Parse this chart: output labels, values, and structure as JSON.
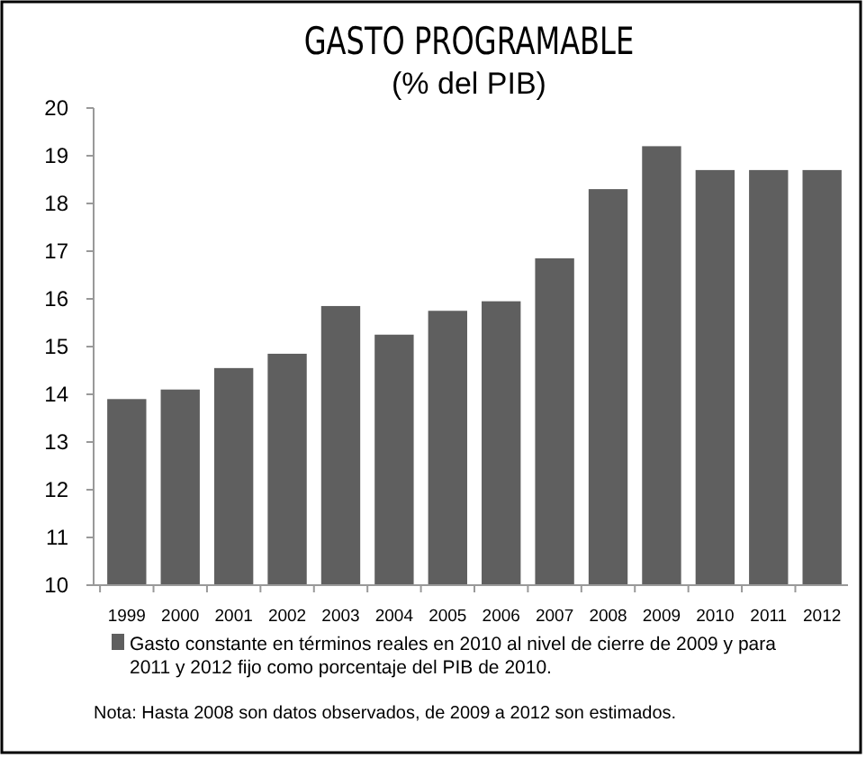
{
  "chart_data": {
    "type": "bar",
    "title": "GASTO PROGRAMABLE",
    "subtitle": "(% del PIB)",
    "categories": [
      "1999",
      "2000",
      "2001",
      "2002",
      "2003",
      "2004",
      "2005",
      "2006",
      "2007",
      "2008",
      "2009",
      "2010",
      "2011",
      "2012"
    ],
    "series": [
      {
        "name": "Gasto constante en términos reales en 2010 al nivel de cierre de 2009 y para 2011 y 2012 fijo como porcentaje del PIB de 2010.",
        "color": "#5f5f5f",
        "values": [
          13.9,
          14.1,
          14.55,
          14.85,
          15.85,
          15.25,
          15.75,
          15.95,
          16.85,
          18.3,
          19.2,
          18.7,
          18.7,
          18.7
        ]
      }
    ],
    "ylim": [
      10,
      20
    ],
    "yticks": [
      10,
      11,
      12,
      13,
      14,
      15,
      16,
      17,
      18,
      19,
      20
    ],
    "grid": false,
    "legend": "bottom",
    "annotations": [
      "Nota: Hasta 2008 son datos observados, de 2009 a 2012 son estimados."
    ]
  }
}
